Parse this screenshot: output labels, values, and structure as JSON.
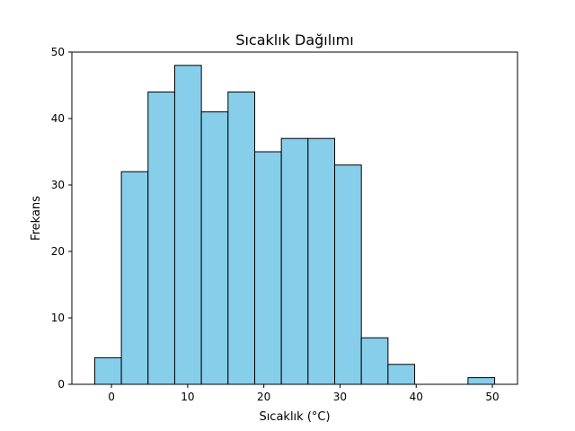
{
  "chart_data": {
    "type": "bar",
    "title": "Sıcaklık Dağılımı",
    "xlabel": "Sıcaklık (°C)",
    "ylabel": "Frekans",
    "bar_color": "#87ceeb",
    "edge_color": "#000000",
    "bin_edges": [
      -2.2,
      1.3,
      4.8,
      8.3,
      11.8,
      15.3,
      18.8,
      22.3,
      25.8,
      29.3,
      32.8,
      36.3,
      39.8,
      43.3,
      46.8,
      50.3
    ],
    "values": [
      4,
      32,
      44,
      48,
      41,
      44,
      35,
      37,
      37,
      33,
      7,
      3,
      0,
      0,
      1
    ],
    "xlim": [
      -5.2,
      53.3
    ],
    "ylim": [
      0,
      50
    ],
    "xticks": [
      0,
      10,
      20,
      30,
      40,
      50
    ],
    "yticks": [
      0,
      10,
      20,
      30,
      40,
      50
    ],
    "grid": false
  }
}
